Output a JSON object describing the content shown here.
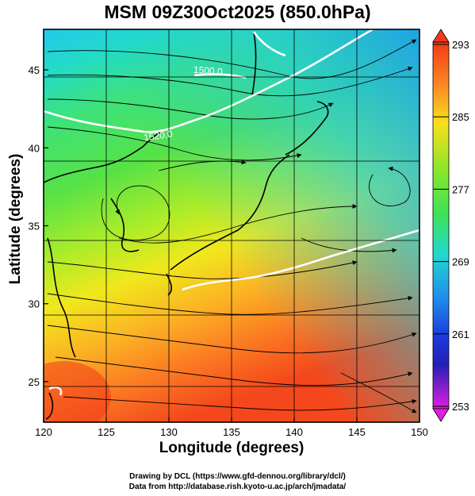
{
  "title": "MSM 09Z30Oct2025 (850.0hPa)",
  "xlabel": "Longitude (degrees)",
  "ylabel": "Latitude  (degrees)",
  "x_ticks": [
    "120",
    "125",
    "130",
    "135",
    "140",
    "145",
    "150"
  ],
  "y_ticks": [
    "25",
    "30",
    "35",
    "40",
    "45"
  ],
  "colorbar": {
    "ticks": [
      "293",
      "285",
      "277",
      "269",
      "261",
      "253"
    ],
    "min": 253,
    "max": 293
  },
  "contour_labels": [
    "1500.0",
    "1520.0"
  ],
  "credits": {
    "line1": "Drawing by DCL (https://www.gfd-dennou.org/library/dcl/)",
    "line2": "Data from http://database.rish.kyoto-u.ac.jp/arch/jmadata/"
  },
  "chart_data": {
    "type": "heatmap",
    "title": "MSM 09Z30Oct2025 (850.0hPa)",
    "xlabel": "Longitude (degrees)",
    "ylabel": "Latitude  (degrees)",
    "xlim": [
      120,
      150
    ],
    "ylim": [
      22.4,
      47.6
    ],
    "colorbar_range": [
      253,
      293
    ],
    "temperature_K_estimates": [
      {
        "lon": 125,
        "lat": 46,
        "value": 275
      },
      {
        "lon": 135,
        "lat": 46,
        "value": 273
      },
      {
        "lon": 148,
        "lat": 46,
        "value": 269
      },
      {
        "lon": 128,
        "lat": 40,
        "value": 277
      },
      {
        "lon": 145,
        "lat": 40,
        "value": 273
      },
      {
        "lon": 125,
        "lat": 35,
        "value": 280
      },
      {
        "lon": 140,
        "lat": 35,
        "value": 279
      },
      {
        "lon": 125,
        "lat": 30,
        "value": 284
      },
      {
        "lon": 145,
        "lat": 30,
        "value": 285
      },
      {
        "lon": 122,
        "lat": 25,
        "value": 288
      },
      {
        "lon": 145,
        "lat": 25,
        "value": 287
      }
    ]
  }
}
